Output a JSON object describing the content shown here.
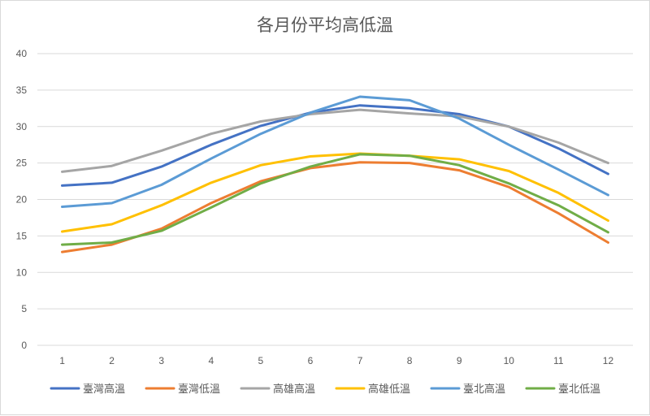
{
  "chart_data": {
    "type": "line",
    "title": "各月份平均高低溫",
    "xlabel": "",
    "ylabel": "",
    "ylim": [
      0,
      40
    ],
    "yticks": [
      0,
      5,
      10,
      15,
      20,
      25,
      30,
      35,
      40
    ],
    "categories": [
      "1",
      "2",
      "3",
      "4",
      "5",
      "6",
      "7",
      "8",
      "9",
      "10",
      "11",
      "12"
    ],
    "grid": "horizontal",
    "legend_position": "bottom",
    "series": [
      {
        "name": "臺灣高溫",
        "color": "#4472C4",
        "values": [
          21.9,
          22.3,
          24.5,
          27.5,
          30.1,
          31.9,
          32.9,
          32.5,
          31.7,
          30.0,
          27.0,
          23.5
        ]
      },
      {
        "name": "臺灣低溫",
        "color": "#ED7D31",
        "values": [
          12.8,
          13.8,
          16.0,
          19.5,
          22.5,
          24.3,
          25.1,
          25.0,
          24.0,
          21.7,
          18.1,
          14.1
        ]
      },
      {
        "name": "高雄高溫",
        "color": "#A5A5A5",
        "values": [
          23.8,
          24.6,
          26.7,
          29.0,
          30.7,
          31.7,
          32.3,
          31.8,
          31.4,
          30.0,
          27.8,
          25.0
        ]
      },
      {
        "name": "高雄低溫",
        "color": "#FFC000",
        "values": [
          15.6,
          16.6,
          19.2,
          22.3,
          24.7,
          25.9,
          26.3,
          26.0,
          25.5,
          23.9,
          20.9,
          17.1
        ]
      },
      {
        "name": "臺北高溫",
        "color": "#5B9BD5",
        "values": [
          19.0,
          19.5,
          22.0,
          25.6,
          29.0,
          31.9,
          34.1,
          33.6,
          31.1,
          27.5,
          24.1,
          20.6
        ]
      },
      {
        "name": "臺北低溫",
        "color": "#70AD47",
        "values": [
          13.8,
          14.1,
          15.7,
          18.9,
          22.2,
          24.5,
          26.2,
          26.0,
          24.7,
          22.2,
          19.2,
          15.5
        ]
      }
    ]
  }
}
